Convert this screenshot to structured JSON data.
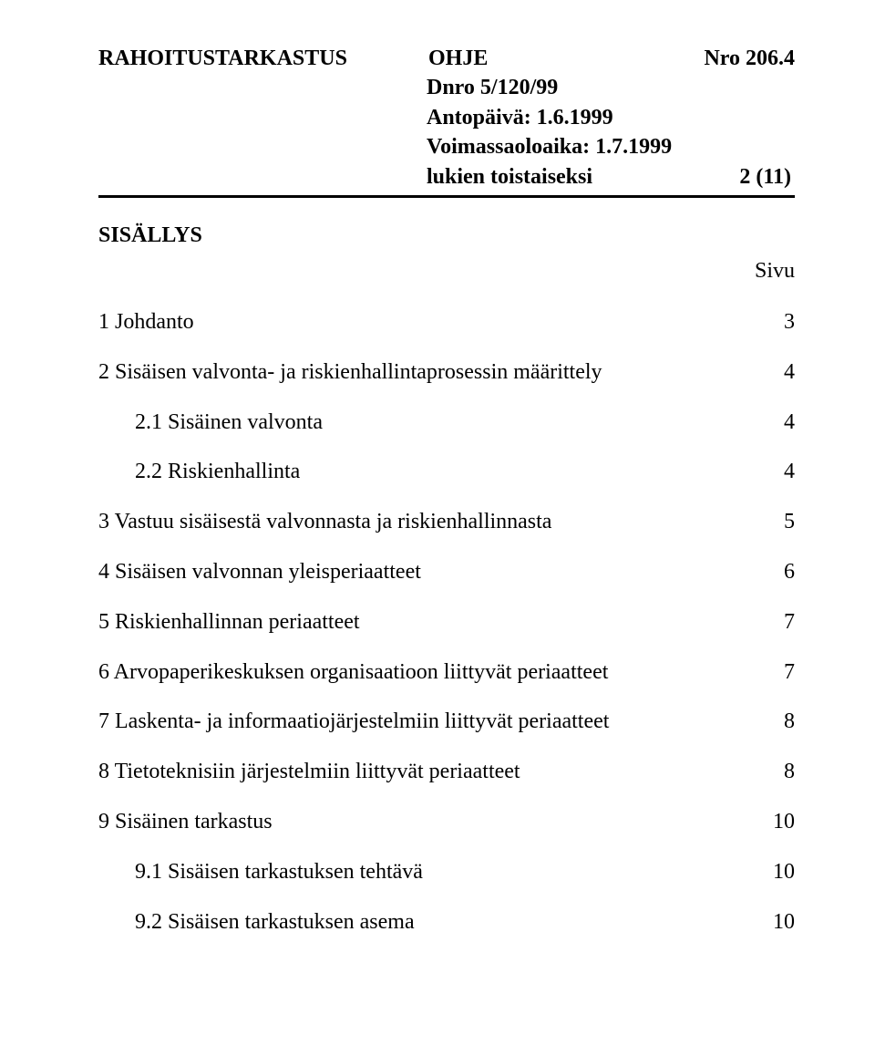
{
  "header": {
    "org": "RAHOITUSTARKASTUS",
    "doc_type": "OHJE",
    "doc_number": "Nro 206.4",
    "dnro": "Dnro 5/120/99",
    "issue_label": "Antopäivä: 1.6.1999",
    "valid_label": "Voimassaoloaika: 1.7.1999",
    "effective": "lukien toistaiseksi",
    "page_of": "2 (11)"
  },
  "toc_title": "SISÄLLYS",
  "page_label": "Sivu",
  "toc": [
    {
      "label": "1 Johdanto",
      "page": "3",
      "sub": false
    },
    {
      "label": "2 Sisäisen valvonta- ja riskienhallintaprosessin määrittely",
      "page": "4",
      "sub": false
    },
    {
      "label": "2.1 Sisäinen valvonta",
      "page": "4",
      "sub": true
    },
    {
      "label": "2.2 Riskienhallinta",
      "page": "4",
      "sub": true
    },
    {
      "label": "3 Vastuu sisäisestä valvonnasta ja riskienhallinnasta",
      "page": "5",
      "sub": false
    },
    {
      "label": "4 Sisäisen valvonnan yleisperiaatteet",
      "page": "6",
      "sub": false
    },
    {
      "label": "5 Riskienhallinnan periaatteet",
      "page": "7",
      "sub": false
    },
    {
      "label": "6 Arvopaperikeskuksen organisaatioon liittyvät periaatteet",
      "page": "7",
      "sub": false
    },
    {
      "label": "7 Laskenta- ja informaatiojärjestelmiin liittyvät periaatteet",
      "page": "8",
      "sub": false
    },
    {
      "label": "8 Tietoteknisiin järjestelmiin liittyvät periaatteet",
      "page": "8",
      "sub": false
    },
    {
      "label": "9 Sisäinen tarkastus",
      "page": "10",
      "sub": false
    },
    {
      "label": "9.1 Sisäisen tarkastuksen tehtävä",
      "page": "10",
      "sub": true
    },
    {
      "label": "9.2 Sisäisen tarkastuksen asema",
      "page": "10",
      "sub": true
    }
  ]
}
